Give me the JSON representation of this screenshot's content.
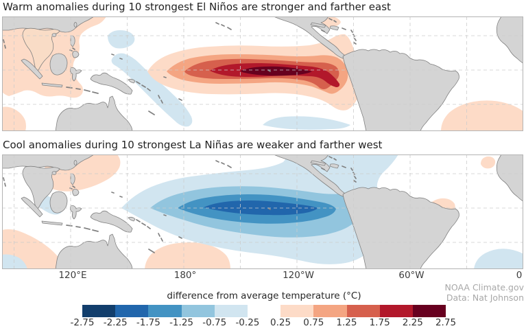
{
  "figure": {
    "panels": [
      {
        "title": "Warm anomalies during 10 strongest El Niños are stronger and farther east"
      },
      {
        "title": "Cool anomalies during 10 strongest La Niñas are weaker and farther west"
      }
    ],
    "x_axis": {
      "tick_labels": [
        "120°E",
        "180°",
        "120°W",
        "60°W",
        "0"
      ]
    },
    "colorbar": {
      "label": "difference from average temperature (°C)",
      "tick_labels": [
        "-2.75",
        "-2.25",
        "-1.75",
        "-1.25",
        "-0.75",
        "-0.25",
        "0.25",
        "0.75",
        "1.25",
        "1.75",
        "2.25",
        "2.75"
      ],
      "segment_colors": [
        "#123e6c",
        "#2166ac",
        "#4393c3",
        "#92c5de",
        "#d1e5f0",
        "#ffffff",
        "#fddbc7",
        "#f4a582",
        "#d6604d",
        "#b2182b",
        "#67001f"
      ]
    },
    "attribution": {
      "line1": "NOAA Climate.gov",
      "line2": "Data: Nat Johnson"
    }
  },
  "chart_data": [
    {
      "type": "heatmap",
      "subtype": "filled-contour composite map",
      "title": "Warm anomalies during 10 strongest El Niños are stronger and farther east",
      "region": "Tropical Indo-Pacific and Atlantic, roughly 30°N to 35°S, 85°E eastward to 0°",
      "x_tick_labels": [
        "120°E",
        "180°",
        "120°W",
        "60°W",
        "0"
      ],
      "contour_interval_c": 0.5,
      "color_scale": {
        "label": "difference from average temperature (°C)",
        "boundaries_c": [
          -2.75,
          -2.25,
          -1.75,
          -1.25,
          -0.75,
          -0.25,
          0.25,
          0.75,
          1.25,
          1.75,
          2.25,
          2.75
        ],
        "colors": [
          "#123e6c",
          "#2166ac",
          "#4393c3",
          "#92c5de",
          "#d1e5f0",
          "#ffffff",
          "#fddbc7",
          "#f4a582",
          "#d6604d",
          "#b2182b",
          "#67001f"
        ]
      },
      "main_feature": {
        "sign": "warm",
        "description": "Equatorial Pacific warm tongue on the equator reaching the South American coast",
        "peak_bin_c": [
          2.25,
          2.75
        ],
        "peak_longitude": "~130°W",
        "west_extent": "~165°E",
        "east_extent": "South American coast (~80°W)"
      },
      "secondary_features": [
        "+0.25 to +0.75°C over Southeast Asia / far western sector",
        "-0.25 to -0.75°C patches in the far western Pacific and a band southeast of the Solomon Islands",
        "+0.25 to +0.75°C over the Caribbean and the far southeastern corner of the map"
      ]
    },
    {
      "type": "heatmap",
      "subtype": "filled-contour composite map",
      "title": "Cool anomalies during 10 strongest La Niñas are weaker and farther west",
      "region": "Tropical Indo-Pacific and Atlantic, roughly 30°N to 35°S, 85°E eastward to 0°",
      "x_tick_labels": [
        "120°E",
        "180°",
        "120°W",
        "60°W",
        "0"
      ],
      "contour_interval_c": 0.5,
      "color_scale": {
        "label": "difference from average temperature (°C)",
        "boundaries_c": [
          -2.75,
          -2.25,
          -1.75,
          -1.25,
          -0.75,
          -0.25,
          0.25,
          0.75,
          1.25,
          1.75,
          2.25,
          2.75
        ],
        "colors": [
          "#123e6c",
          "#2166ac",
          "#4393c3",
          "#92c5de",
          "#d1e5f0",
          "#ffffff",
          "#fddbc7",
          "#f4a582",
          "#d6604d",
          "#b2182b",
          "#67001f"
        ]
      },
      "main_feature": {
        "sign": "cool",
        "description": "Equatorial Pacific cool tongue centered west of the El Niño warm tongue, weaker in amplitude",
        "peak_bin_c": [
          -2.25,
          -1.75
        ],
        "peak_longitude": "~155°W",
        "west_extent": "~160°E",
        "east_extent": "light cool anomalies spread to Central America and the Caribbean"
      },
      "secondary_features": [
        "+0.25 to +0.75°C northeast of the Philippines touching the top edge",
        "+0.25 to +0.75°C southwest of Australia and south-central Pacific near New Caledonia",
        "+0.25 to +0.75°C patch off northeast Brazil and near the far-right (African) coast",
        "-0.25 to -0.75°C patches near Sumatra, bottom-left corner and southeastern corner"
      ]
    }
  ]
}
